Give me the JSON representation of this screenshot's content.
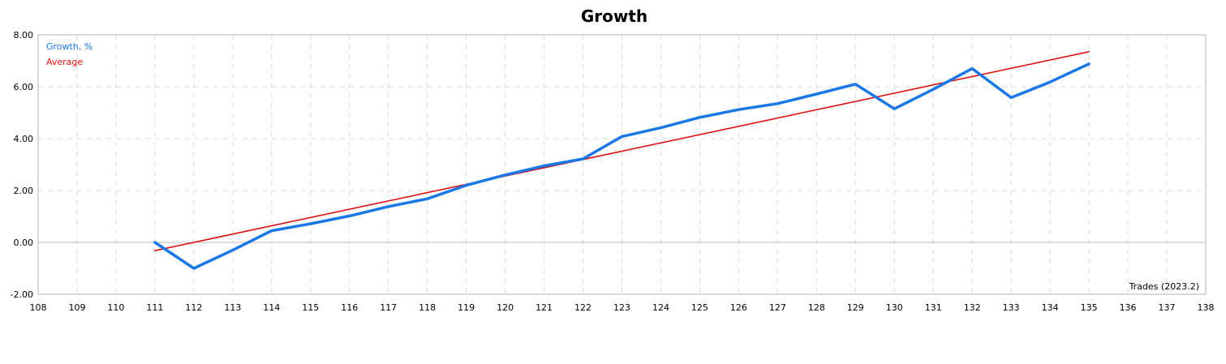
{
  "chart_data": {
    "type": "line",
    "title": "Growth",
    "xlabel": "Trades (2023.2)",
    "ylabel": "",
    "xlim": [
      108,
      138
    ],
    "ylim": [
      -2,
      8
    ],
    "x_ticks": [
      108,
      109,
      110,
      111,
      112,
      113,
      114,
      115,
      116,
      117,
      118,
      119,
      120,
      121,
      122,
      123,
      124,
      125,
      126,
      127,
      128,
      129,
      130,
      131,
      132,
      133,
      134,
      135,
      136,
      137,
      138
    ],
    "y_ticks": [
      "-2.00",
      "0.00",
      "2.00",
      "4.00",
      "6.00",
      "8.00"
    ],
    "grid": true,
    "legend_position": "top-left",
    "series": [
      {
        "name": "Growth, %",
        "color": "#1a78e6",
        "x": [
          111,
          112,
          113,
          114,
          115,
          116,
          117,
          118,
          119,
          120,
          121,
          122,
          123,
          124,
          125,
          126,
          127,
          128,
          129,
          130,
          131,
          132,
          133,
          134,
          135
        ],
        "values": [
          0.0,
          -1.0,
          -0.3,
          0.45,
          0.72,
          1.02,
          1.38,
          1.68,
          2.2,
          2.6,
          2.95,
          3.22,
          4.08,
          4.42,
          4.82,
          5.12,
          5.35,
          5.72,
          6.1,
          5.15,
          5.9,
          6.7,
          5.58,
          6.18,
          6.88
        ]
      },
      {
        "name": "Average",
        "color": "#dd1111",
        "x": [
          111,
          135
        ],
        "values": [
          -0.32,
          7.35
        ]
      }
    ]
  }
}
